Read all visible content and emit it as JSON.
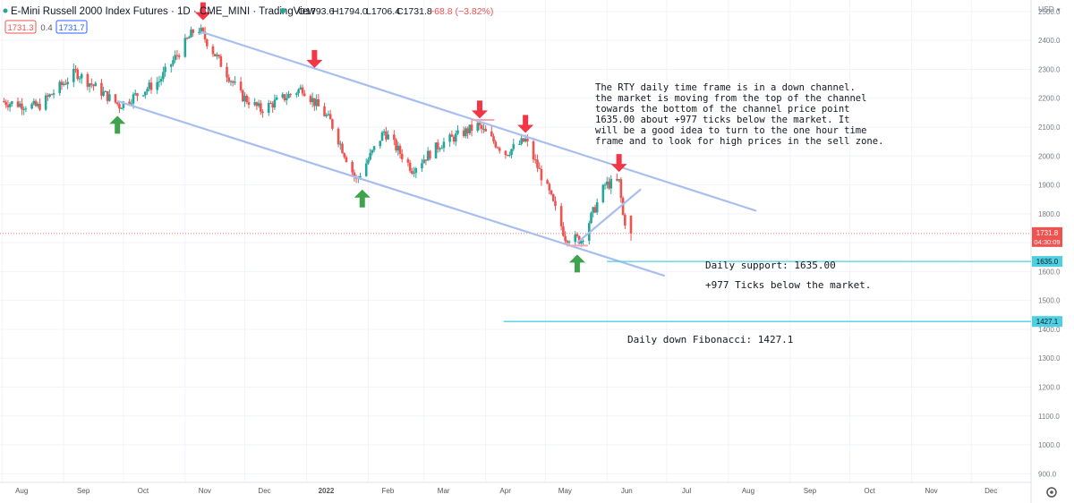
{
  "header": {
    "symbol_title": "E-Mini Russell 2000 Index Futures · 1D · CME_MINI · TradingView",
    "ohlc": {
      "open": "O1793.6",
      "high": "H1794.0",
      "low": "L1706.4",
      "close": "C1731.8",
      "change": "−68.8 (−3.82%)"
    },
    "bid": "1731.3",
    "spread": "0.4",
    "ask": "1731.7"
  },
  "colors": {
    "up": "#26a69a",
    "down": "#ef5350",
    "channel": "#a9bef0",
    "fib_line": "#4dd0e1",
    "arrow_down": "#f23645",
    "arrow_up": "#3fa34d",
    "price_label": "#ef5350",
    "level_label": "#4dd0e1"
  },
  "currency": "USD",
  "chart_data": {
    "type": "candlestick",
    "x_axis": {
      "labels": [
        "Aug",
        "Sep",
        "Oct",
        "Nov",
        "Dec",
        "2022",
        "Feb",
        "Mar",
        "Apr",
        "May",
        "Jun",
        "Jul",
        "Aug",
        "Sep",
        "Oct",
        "Nov",
        "Dec"
      ],
      "range": [
        "2021-07-31",
        "2022-12-31"
      ]
    },
    "y_axis": {
      "ticks": [
        "2500.0",
        "2400.0",
        "2300.0",
        "2200.0",
        "2100.0",
        "2000.0",
        "1900.0",
        "1800.0",
        "1700.0",
        "1600.0",
        "1500.0",
        "1400.0",
        "1300.0",
        "1200.0",
        "1100.0",
        "1000.0",
        "900.0"
      ],
      "range": [
        870,
        2540
      ]
    },
    "anchors": [
      [
        "2021-07-31",
        2190
      ],
      [
        "2021-08-20",
        2170
      ],
      [
        "2021-09-08",
        2290
      ],
      [
        "2021-09-30",
        2175
      ],
      [
        "2021-10-20",
        2260
      ],
      [
        "2021-11-08",
        2450
      ],
      [
        "2021-11-30",
        2210
      ],
      [
        "2021-12-10",
        2160
      ],
      [
        "2021-12-31",
        2235
      ],
      [
        "2022-01-14",
        2120
      ],
      [
        "2022-01-27",
        1915
      ],
      [
        "2022-02-10",
        2085
      ],
      [
        "2022-02-24",
        1955
      ],
      [
        "2022-03-10",
        2040
      ],
      [
        "2022-03-29",
        2105
      ],
      [
        "2022-04-12",
        2010
      ],
      [
        "2022-04-22",
        2055
      ],
      [
        "2022-05-04",
        1870
      ],
      [
        "2022-05-12",
        1720
      ],
      [
        "2022-05-20",
        1710
      ],
      [
        "2022-06-01",
        1900
      ],
      [
        "2022-06-08",
        1910
      ],
      [
        "2022-06-10",
        1793.6
      ],
      [
        "2022-06-13",
        1731.8
      ]
    ],
    "last_candle": {
      "date": "2022-06-13",
      "open": 1793.6,
      "high": 1794.0,
      "low": 1706.4,
      "close": 1731.8
    },
    "last_price_label": "1731.8",
    "countdown": "04:30:09",
    "channel_lines": [
      {
        "name": "upper",
        "from": [
          "2021-11-09",
          2430
        ],
        "to": [
          "2022-08-15",
          1810
        ]
      },
      {
        "name": "lower",
        "from": [
          "2021-09-28",
          2190
        ],
        "to": [
          "2022-06-30",
          1585
        ]
      },
      {
        "name": "inner",
        "from": [
          "2022-05-17",
          1700
        ],
        "to": [
          "2022-06-18",
          1885
        ]
      }
    ],
    "horizontal_levels": [
      {
        "price": 1635.0,
        "from": "2022-06-01",
        "label": "1635.0",
        "text": "Daily support: 1635.00"
      },
      {
        "price": 1427.1,
        "from": "2022-04-10",
        "label": "1427.1",
        "text": "Daily down Fibonacci: 1427.1"
      }
    ],
    "sub_note": "+977 Ticks below the market.",
    "annotation": "The RTY daily time frame is in a down channel. the market is moving from the top of the channel towards the bottom of the channel price point 1635.00 about +977 ticks below the market. It will be a good idea to turn to the one hour time frame and to look for high prices in the sell zone.",
    "arrows_down": [
      [
        "2021-11-10",
        2445
      ],
      [
        "2022-01-05",
        2280
      ],
      [
        "2022-03-29",
        2105
      ],
      [
        "2022-04-21",
        2055
      ],
      [
        "2022-06-07",
        1920
      ]
    ],
    "arrows_up": [
      [
        "2021-09-28",
        2170
      ],
      [
        "2022-01-29",
        1915
      ],
      [
        "2022-05-17",
        1690
      ]
    ],
    "markers": [
      [
        "2022-03-31",
        2125
      ],
      [
        "2022-05-17",
        1690
      ]
    ]
  }
}
